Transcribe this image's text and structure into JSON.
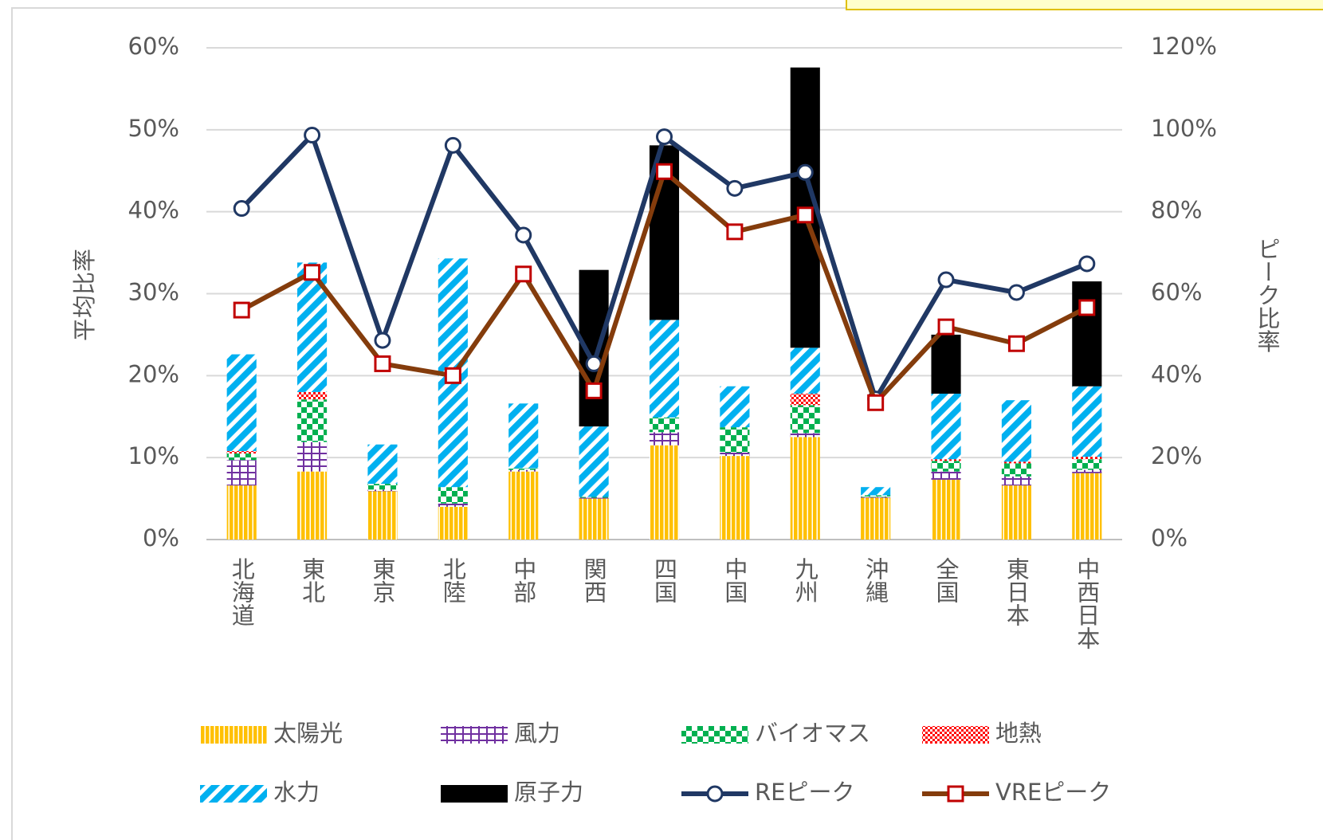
{
  "chart_data": {
    "type": "bar",
    "y_label": "平均比率",
    "y2_label": "ピーク比率",
    "categories": [
      "北海道",
      "東北",
      "東京",
      "北陸",
      "中部",
      "関西",
      "四国",
      "中国",
      "九州",
      "沖縄",
      "全国",
      "東日本",
      "中西日本"
    ],
    "ylim": [
      0,
      60
    ],
    "yticks": [
      {
        "value": 0,
        "label": "0%"
      },
      {
        "value": 10,
        "label": "10%"
      },
      {
        "value": 20,
        "label": "20%"
      },
      {
        "value": 30,
        "label": "30%"
      },
      {
        "value": 40,
        "label": "40%"
      },
      {
        "value": 50,
        "label": "50%"
      },
      {
        "value": 60,
        "label": "60%"
      }
    ],
    "y2lim": [
      0,
      120
    ],
    "y2ticks": [
      {
        "value": 0,
        "label": "0%"
      },
      {
        "value": 20,
        "label": "20%"
      },
      {
        "value": 40,
        "label": "40%"
      },
      {
        "value": 60,
        "label": "60%"
      },
      {
        "value": 80,
        "label": "80%"
      },
      {
        "value": 100,
        "label": "100%"
      },
      {
        "value": 120,
        "label": "120%"
      }
    ],
    "grid": true,
    "series": [
      {
        "name": "太陽光",
        "color": "#ffc000",
        "pattern": "vertical",
        "values": [
          6.6,
          8.3,
          5.9,
          4.0,
          8.3,
          5.0,
          11.5,
          10.2,
          12.5,
          5.1,
          7.3,
          6.6,
          8.1
        ]
      },
      {
        "name": "風力",
        "color": "#7030a0",
        "pattern": "grid",
        "values": [
          3.1,
          3.6,
          0.2,
          0.4,
          0.2,
          0.1,
          1.6,
          0.4,
          0.5,
          0.1,
          1.0,
          1.1,
          0.4
        ]
      },
      {
        "name": "バイオマス",
        "color": "#00b050",
        "pattern": "checker",
        "values": [
          0.8,
          5.2,
          0.7,
          2.0,
          0.2,
          0.1,
          1.8,
          3.1,
          3.4,
          0.2,
          1.3,
          1.6,
          1.3
        ]
      },
      {
        "name": "地熱",
        "color": "#ff0000",
        "pattern": "checker-small",
        "values": [
          0.3,
          0.9,
          0,
          0,
          0,
          0,
          0,
          0,
          1.4,
          0,
          0.2,
          0.2,
          0.3
        ]
      },
      {
        "name": "水力",
        "color": "#00b0f0",
        "pattern": "diagonal",
        "values": [
          11.8,
          15.8,
          4.8,
          27.9,
          7.9,
          8.6,
          11.9,
          5.0,
          5.6,
          1.0,
          8.0,
          7.5,
          8.6
        ]
      },
      {
        "name": "原子力",
        "color": "#000000",
        "pattern": "solid",
        "values": [
          0,
          0,
          0,
          0,
          0,
          19.1,
          21.3,
          0,
          34.2,
          0,
          7.2,
          0,
          12.8
        ]
      },
      {
        "name": "REピーク",
        "color": "#203864",
        "marker": "circle",
        "marker_color": "#203864",
        "axis": "y2",
        "values": [
          80.8,
          98.7,
          48.6,
          96.2,
          74.3,
          42.9,
          98.3,
          85.7,
          89.6,
          34.3,
          63.4,
          60.3,
          67.3
        ]
      },
      {
        "name": "VREピーク",
        "color": "#843c0c",
        "marker": "square",
        "marker_color": "#c00000",
        "axis": "y2",
        "values": [
          56.0,
          65.2,
          42.9,
          40.0,
          64.8,
          36.3,
          89.8,
          75.1,
          79.2,
          33.4,
          51.9,
          47.8,
          56.6
        ]
      }
    ]
  }
}
